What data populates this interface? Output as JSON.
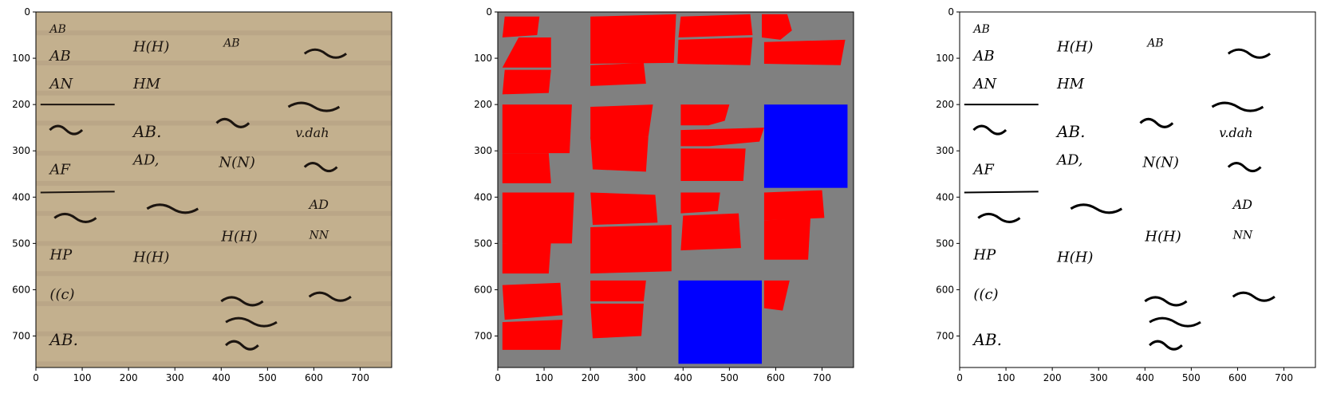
{
  "figure": {
    "panels": [
      {
        "id": "manuscript-photo",
        "content": "photograph of a historical handwritten manuscript page",
        "xticks": [
          "0",
          "100",
          "200",
          "300",
          "400",
          "500",
          "600",
          "700"
        ],
        "yticks": [
          "0",
          "100",
          "200",
          "300",
          "400",
          "500",
          "600",
          "700"
        ]
      },
      {
        "id": "segmentation-mask",
        "content": "segmentation mask: red polygons for text regions, blue rectangles for other regions, gray background",
        "xticks": [
          "0",
          "100",
          "200",
          "300",
          "400",
          "500",
          "600",
          "700"
        ],
        "yticks": [
          "0",
          "100",
          "200",
          "300",
          "400",
          "500",
          "600",
          "700"
        ]
      },
      {
        "id": "binarized-image",
        "content": "binarized black-and-white version of the manuscript",
        "xticks": [
          "0",
          "100",
          "200",
          "300",
          "400",
          "500",
          "600",
          "700"
        ],
        "yticks": [
          "0",
          "100",
          "200",
          "300",
          "400",
          "500",
          "600",
          "700"
        ]
      }
    ]
  },
  "colors": {
    "background": "#ffffff",
    "parchment": "#c3b08e",
    "ink": "#1c1510",
    "mask_background": "#808080",
    "text_region": "#ff0000",
    "other_region": "#0000ff"
  },
  "manuscript_text": [
    "AB",
    "AB",
    "AN",
    "H(H)",
    "HM",
    "AB",
    "AB.",
    "AD,",
    "AF",
    "HP",
    "H(H)",
    "((c)",
    "AB.",
    "v.dah",
    "N(N)",
    "H(H)",
    "AD",
    "NN"
  ]
}
